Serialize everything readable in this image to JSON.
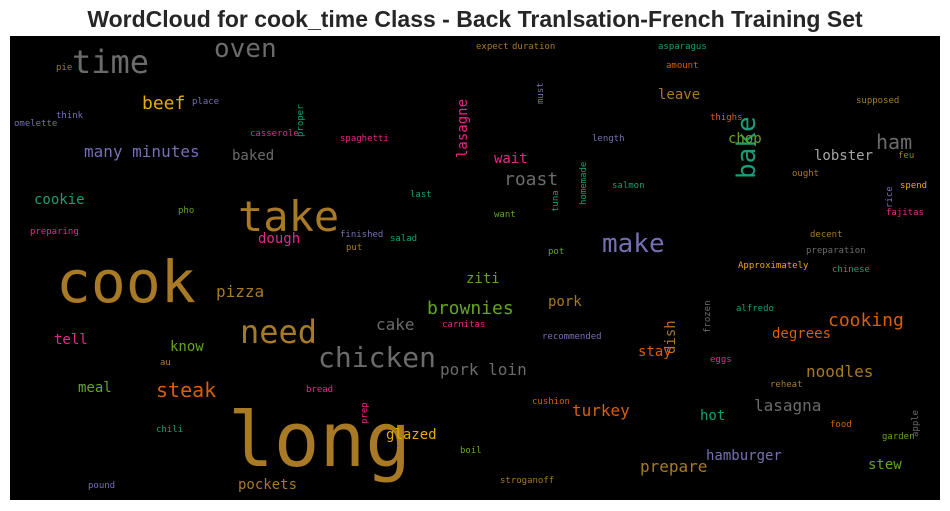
{
  "title": "WordCloud for cook_time Class - Back Tranlsation-French Training Set",
  "chart_data": {
    "type": "wordcloud",
    "title": "WordCloud for cook_time Class - Back Tranlsation-French Training Set",
    "background": "#000000",
    "words": [
      {
        "text": "long",
        "color": "#a87a26",
        "vertical": false
      },
      {
        "text": "cook",
        "color": "#a87a26",
        "vertical": false
      },
      {
        "text": "take",
        "color": "#a87a26",
        "vertical": false
      },
      {
        "text": "time",
        "color": "#6b6b6b",
        "vertical": false
      },
      {
        "text": "oven",
        "color": "#6b6b6b",
        "vertical": false
      },
      {
        "text": "bake",
        "color": "#1b9e77",
        "vertical": true
      },
      {
        "text": "need",
        "color": "#a87a26",
        "vertical": false
      },
      {
        "text": "make",
        "color": "#7570b3",
        "vertical": false
      },
      {
        "text": "chicken",
        "color": "#6b6b6b",
        "vertical": false
      },
      {
        "text": "ham",
        "color": "#6b6b6b",
        "vertical": false
      },
      {
        "text": "beef",
        "color": "#e6ab02",
        "vertical": false
      },
      {
        "text": "many minutes",
        "color": "#7570b3",
        "vertical": false
      },
      {
        "text": "roast",
        "color": "#6b6b6b",
        "vertical": false
      },
      {
        "text": "brownies",
        "color": "#66a61e",
        "vertical": false
      },
      {
        "text": "cooking",
        "color": "#d95f02",
        "vertical": false
      },
      {
        "text": "pizza",
        "color": "#a87a26",
        "vertical": false
      },
      {
        "text": "steak",
        "color": "#d95f02",
        "vertical": false
      },
      {
        "text": "pork loin",
        "color": "#6b6b6b",
        "vertical": false
      },
      {
        "text": "lasagna",
        "color": "#6b6b6b",
        "vertical": false
      },
      {
        "text": "prepare",
        "color": "#a87a26",
        "vertical": false
      },
      {
        "text": "cake",
        "color": "#6b6b6b",
        "vertical": false
      },
      {
        "text": "noodles",
        "color": "#a87a26",
        "vertical": false
      },
      {
        "text": "lasagne",
        "color": "#e7298a",
        "vertical": true
      },
      {
        "text": "lobster",
        "color": "#a6a6a6",
        "vertical": false
      },
      {
        "text": "degrees",
        "color": "#d95f02",
        "vertical": false
      },
      {
        "text": "turkey",
        "color": "#d95f02",
        "vertical": false
      },
      {
        "text": "leave",
        "color": "#a87a26",
        "vertical": false
      },
      {
        "text": "wait",
        "color": "#e7298a",
        "vertical": false
      },
      {
        "text": "chop",
        "color": "#66a61e",
        "vertical": false
      },
      {
        "text": "baked",
        "color": "#6b6b6b",
        "vertical": false
      },
      {
        "text": "glazed",
        "color": "#e6ab02",
        "vertical": false
      },
      {
        "text": "hamburger",
        "color": "#7570b3",
        "vertical": false
      },
      {
        "text": "stew",
        "color": "#66a61e",
        "vertical": false
      },
      {
        "text": "pockets",
        "color": "#a87a26",
        "vertical": false
      },
      {
        "text": "ziti",
        "color": "#66a61e",
        "vertical": false
      },
      {
        "text": "pork",
        "color": "#a87a26",
        "vertical": false
      },
      {
        "text": "dish",
        "color": "#a87a26",
        "vertical": true
      },
      {
        "text": "stay",
        "color": "#d95f02",
        "vertical": false
      },
      {
        "text": "hot",
        "color": "#1b9e77",
        "vertical": false
      },
      {
        "text": "cookie",
        "color": "#1b9e77",
        "vertical": false
      },
      {
        "text": "dough",
        "color": "#e7298a",
        "vertical": false
      },
      {
        "text": "know",
        "color": "#66a61e",
        "vertical": false
      },
      {
        "text": "tell",
        "color": "#e7298a",
        "vertical": false
      },
      {
        "text": "meal",
        "color": "#66a61e",
        "vertical": false
      },
      {
        "text": "proper",
        "color": "#1b9e77",
        "vertical": true
      },
      {
        "text": "pie",
        "color": "#a87a26",
        "vertical": false
      },
      {
        "text": "omelette",
        "color": "#7570b3",
        "vertical": false
      },
      {
        "text": "think",
        "color": "#7570b3",
        "vertical": false
      },
      {
        "text": "place",
        "color": "#7570b3",
        "vertical": false
      },
      {
        "text": "casserole",
        "color": "#e7298a",
        "vertical": false
      },
      {
        "text": "spaghetti",
        "color": "#e7298a",
        "vertical": false
      },
      {
        "text": "expect",
        "color": "#a87a26",
        "vertical": false
      },
      {
        "text": "duration",
        "color": "#a87a26",
        "vertical": false
      },
      {
        "text": "must",
        "color": "#7570b3",
        "vertical": true
      },
      {
        "text": "asparagus",
        "color": "#1b9e77",
        "vertical": false
      },
      {
        "text": "amount",
        "color": "#d95f02",
        "vertical": false
      },
      {
        "text": "supposed",
        "color": "#a87a26",
        "vertical": false
      },
      {
        "text": "thighs",
        "color": "#d95f02",
        "vertical": false
      },
      {
        "text": "length",
        "color": "#7570b3",
        "vertical": false
      },
      {
        "text": "homemade",
        "color": "#1b9e77",
        "vertical": true
      },
      {
        "text": "tuna",
        "color": "#1b9e77",
        "vertical": true
      },
      {
        "text": "feu",
        "color": "#a87a26",
        "vertical": false
      },
      {
        "text": "ought",
        "color": "#a87a26",
        "vertical": false
      },
      {
        "text": "rice",
        "color": "#7570b3",
        "vertical": true
      },
      {
        "text": "spend",
        "color": "#e6ab02",
        "vertical": false
      },
      {
        "text": "salmon",
        "color": "#1b9e77",
        "vertical": false
      },
      {
        "text": "last",
        "color": "#1b9e77",
        "vertical": false
      },
      {
        "text": "pho",
        "color": "#66a61e",
        "vertical": false
      },
      {
        "text": "want",
        "color": "#66a61e",
        "vertical": false
      },
      {
        "text": "fajitas",
        "color": "#e7298a",
        "vertical": false
      },
      {
        "text": "decent",
        "color": "#a87a26",
        "vertical": false
      },
      {
        "text": "preparing",
        "color": "#e7298a",
        "vertical": false
      },
      {
        "text": "finished",
        "color": "#7570b3",
        "vertical": false
      },
      {
        "text": "salad",
        "color": "#1b9e77",
        "vertical": false
      },
      {
        "text": "put",
        "color": "#a87a26",
        "vertical": false
      },
      {
        "text": "preparation",
        "color": "#6b6b6b",
        "vertical": false
      },
      {
        "text": "pot",
        "color": "#66a61e",
        "vertical": false
      },
      {
        "text": "chinese",
        "color": "#1b9e77",
        "vertical": false
      },
      {
        "text": "Approximately",
        "color": "#e6ab02",
        "vertical": false
      },
      {
        "text": "frozen",
        "color": "#6b6b6b",
        "vertical": true
      },
      {
        "text": "alfredo",
        "color": "#1b9e77",
        "vertical": false
      },
      {
        "text": "carnitas",
        "color": "#e7298a",
        "vertical": false
      },
      {
        "text": "recommended",
        "color": "#7570b3",
        "vertical": false
      },
      {
        "text": "au",
        "color": "#a87a26",
        "vertical": false
      },
      {
        "text": "eggs",
        "color": "#e7298a",
        "vertical": false
      },
      {
        "text": "bread",
        "color": "#e7298a",
        "vertical": false
      },
      {
        "text": "prep",
        "color": "#e7298a",
        "vertical": true
      },
      {
        "text": "reheat",
        "color": "#a87a26",
        "vertical": false
      },
      {
        "text": "apple",
        "color": "#6b6b6b",
        "vertical": true
      },
      {
        "text": "cushion",
        "color": "#d95f02",
        "vertical": false
      },
      {
        "text": "chili",
        "color": "#1b9e77",
        "vertical": false
      },
      {
        "text": "food",
        "color": "#d95f02",
        "vertical": false
      },
      {
        "text": "garden",
        "color": "#66a61e",
        "vertical": false
      },
      {
        "text": "boil",
        "color": "#66a61e",
        "vertical": false
      },
      {
        "text": "pound",
        "color": "#7570b3",
        "vertical": false
      },
      {
        "text": "stroganoff",
        "color": "#a87a26",
        "vertical": false
      }
    ]
  }
}
